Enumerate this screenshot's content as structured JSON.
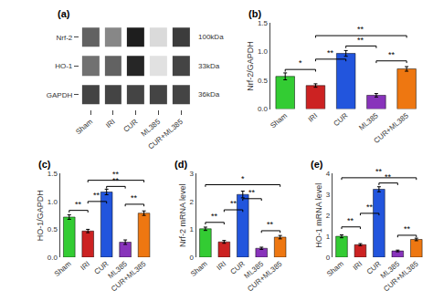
{
  "chart_data": [
    {
      "type": "heatmap",
      "title": "(a)",
      "x": [
        "Sham",
        "IRI",
        "CUR",
        "ML385",
        "CUR+ML385"
      ],
      "y": [
        "Nrf-2",
        "HO-1",
        "GAPDH"
      ],
      "cells": [
        [
          0.62,
          0.52,
          0.8,
          0.3,
          0.72
        ],
        [
          0.58,
          0.62,
          0.78,
          0.28,
          0.7
        ],
        [
          0.7,
          0.7,
          0.7,
          0.7,
          0.7
        ]
      ],
      "annotations": [
        "100kDa",
        "33kDa",
        "36kDa"
      ],
      "grid": false
    },
    {
      "type": "bar",
      "title": "(b)",
      "ylabel": "Nrf-2/GAPDH",
      "categories": [
        "Sham",
        "IRI",
        "CUR",
        "ML385",
        "CUR+ML385"
      ],
      "values": [
        0.57,
        0.41,
        0.97,
        0.24,
        0.7
      ],
      "errors": [
        0.06,
        0.03,
        0.05,
        0.03,
        0.04
      ],
      "colors": [
        "#33cc33",
        "#cc2222",
        "#2255dd",
        "#8833bb",
        "#ee7711"
      ],
      "ylim": [
        0.0,
        1.5
      ],
      "yticks": [
        {
          "value": 0.0,
          "label": "0.0"
        },
        0.5,
        {
          "value": 1.0,
          "label": "1.0"
        },
        1.5
      ],
      "significance": [
        {
          "pair": [
            0,
            1
          ],
          "label": "*",
          "y": 0.69
        },
        {
          "pair": [
            1,
            2
          ],
          "label": "**",
          "y": 0.87
        },
        {
          "pair": [
            2,
            3
          ],
          "label": "**",
          "y": 1.1
        },
        {
          "pair": [
            3,
            4
          ],
          "label": "**",
          "y": 0.84
        },
        {
          "pair": [
            1,
            4
          ],
          "label": "**",
          "y": 1.28
        }
      ],
      "grid": false
    },
    {
      "type": "bar",
      "title": "(c)",
      "ylabel": "HO-1/GAPDH",
      "categories": [
        "Sham",
        "IRI",
        "CUR",
        "ML385",
        "CUR+ML385"
      ],
      "values": [
        0.72,
        0.47,
        1.17,
        0.27,
        0.79
      ],
      "errors": [
        0.04,
        0.03,
        0.05,
        0.04,
        0.04
      ],
      "colors": [
        "#33cc33",
        "#cc2222",
        "#2255dd",
        "#8833bb",
        "#ee7711"
      ],
      "ylim": [
        0.0,
        1.5
      ],
      "yticks": [
        {
          "value": 0.0,
          "label": "0.0"
        },
        0.5,
        {
          "value": 1.0,
          "label": "1.0"
        },
        1.5
      ],
      "significance": [
        {
          "pair": [
            0,
            1
          ],
          "label": "**",
          "y": 0.84
        },
        {
          "pair": [
            1,
            2
          ],
          "label": "**",
          "y": 1.0
        },
        {
          "pair": [
            2,
            3
          ],
          "label": "**",
          "y": 1.27
        },
        {
          "pair": [
            3,
            4
          ],
          "label": "**",
          "y": 0.95
        },
        {
          "pair": [
            1,
            4
          ],
          "label": "**",
          "y": 1.38
        }
      ],
      "grid": false
    },
    {
      "type": "bar",
      "title": "(d)",
      "ylabel": "Nrf-2 mRNA level",
      "categories": [
        "Sham",
        "IRI",
        "CUR",
        "ML385",
        "CUR+ML385"
      ],
      "values": [
        1.02,
        0.55,
        2.25,
        0.32,
        0.72
      ],
      "errors": [
        0.06,
        0.05,
        0.12,
        0.04,
        0.06
      ],
      "colors": [
        "#33cc33",
        "#cc2222",
        "#2255dd",
        "#8833bb",
        "#ee7711"
      ],
      "ylim": [
        0,
        3
      ],
      "yticks": [
        0,
        1,
        2,
        3
      ],
      "significance": [
        {
          "pair": [
            0,
            1
          ],
          "label": "**",
          "y": 1.25
        },
        {
          "pair": [
            1,
            2
          ],
          "label": "**",
          "y": 1.7
        },
        {
          "pair": [
            2,
            3
          ],
          "label": "**",
          "y": 2.1
        },
        {
          "pair": [
            3,
            4
          ],
          "label": "**",
          "y": 0.95
        },
        {
          "pair": [
            0,
            4
          ],
          "label": "*",
          "y": 2.6
        }
      ],
      "grid": false
    },
    {
      "type": "bar",
      "title": "(e)",
      "ylabel": "HO-1 mRNA level",
      "categories": [
        "Sham",
        "IRI",
        "CUR",
        "ML385",
        "CUR+ML385"
      ],
      "values": [
        1.0,
        0.6,
        3.25,
        0.3,
        0.85
      ],
      "errors": [
        0.07,
        0.05,
        0.12,
        0.04,
        0.06
      ],
      "colors": [
        "#33cc33",
        "#cc2222",
        "#2255dd",
        "#8833bb",
        "#ee7711"
      ],
      "ylim": [
        0,
        4
      ],
      "yticks": [
        0,
        1,
        2,
        3,
        4
      ],
      "significance": [
        {
          "pair": [
            0,
            1
          ],
          "label": "**",
          "y": 1.45
        },
        {
          "pair": [
            1,
            2
          ],
          "label": "**",
          "y": 2.1
        },
        {
          "pair": [
            2,
            3
          ],
          "label": "**",
          "y": 3.55
        },
        {
          "pair": [
            3,
            4
          ],
          "label": "**",
          "y": 1.05
        },
        {
          "pair": [
            0,
            4
          ],
          "label": "**",
          "y": 3.8
        }
      ],
      "grid": false
    }
  ]
}
